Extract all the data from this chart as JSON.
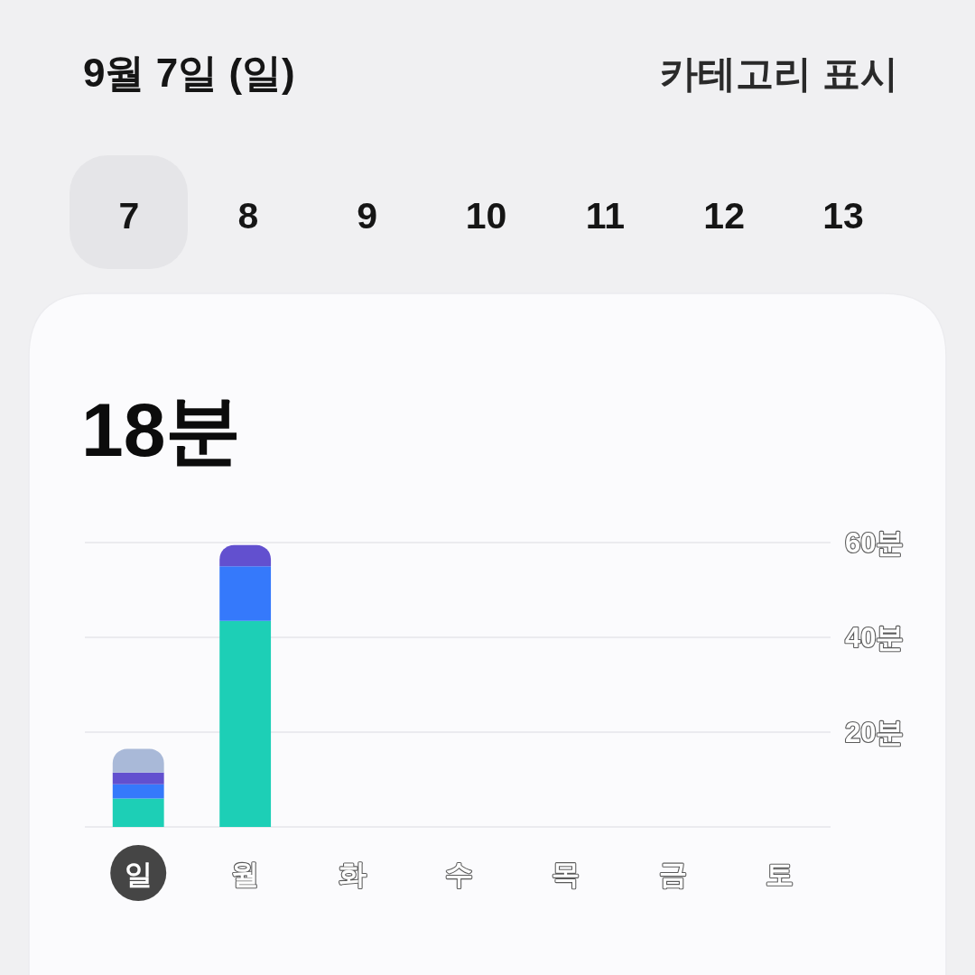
{
  "chart_data": {
    "type": "bar",
    "stacked": true,
    "title": "9월 7일 (일)",
    "subtitle": "18분",
    "annotations": [
      "카테고리 표시",
      "7",
      "8",
      "9",
      "10",
      "11",
      "12",
      "13"
    ],
    "categories": [
      "일",
      "월",
      "화",
      "수",
      "목",
      "금",
      "토"
    ],
    "series": [
      {
        "color": "#1dcfb6",
        "values": [
          6,
          43.5,
          null,
          null,
          null,
          null,
          null
        ]
      },
      {
        "color": "#3579fb",
        "values": [
          3,
          11.5,
          null,
          null,
          null,
          null,
          null
        ]
      },
      {
        "color": "#6250cf",
        "values": [
          2.5,
          4.5,
          null,
          null,
          null,
          null,
          null
        ]
      },
      {
        "color": "#a9b9d8",
        "values": [
          5,
          null,
          null,
          null,
          null,
          null,
          null
        ]
      }
    ],
    "ylim": [
      0,
      60
    ],
    "yticks": [
      {
        "value": 0,
        "label": null
      },
      {
        "value": 20,
        "label": "20분"
      },
      {
        "value": 40,
        "label": "40분"
      },
      {
        "value": 60,
        "label": "60분"
      }
    ],
    "grid": "y"
  }
}
